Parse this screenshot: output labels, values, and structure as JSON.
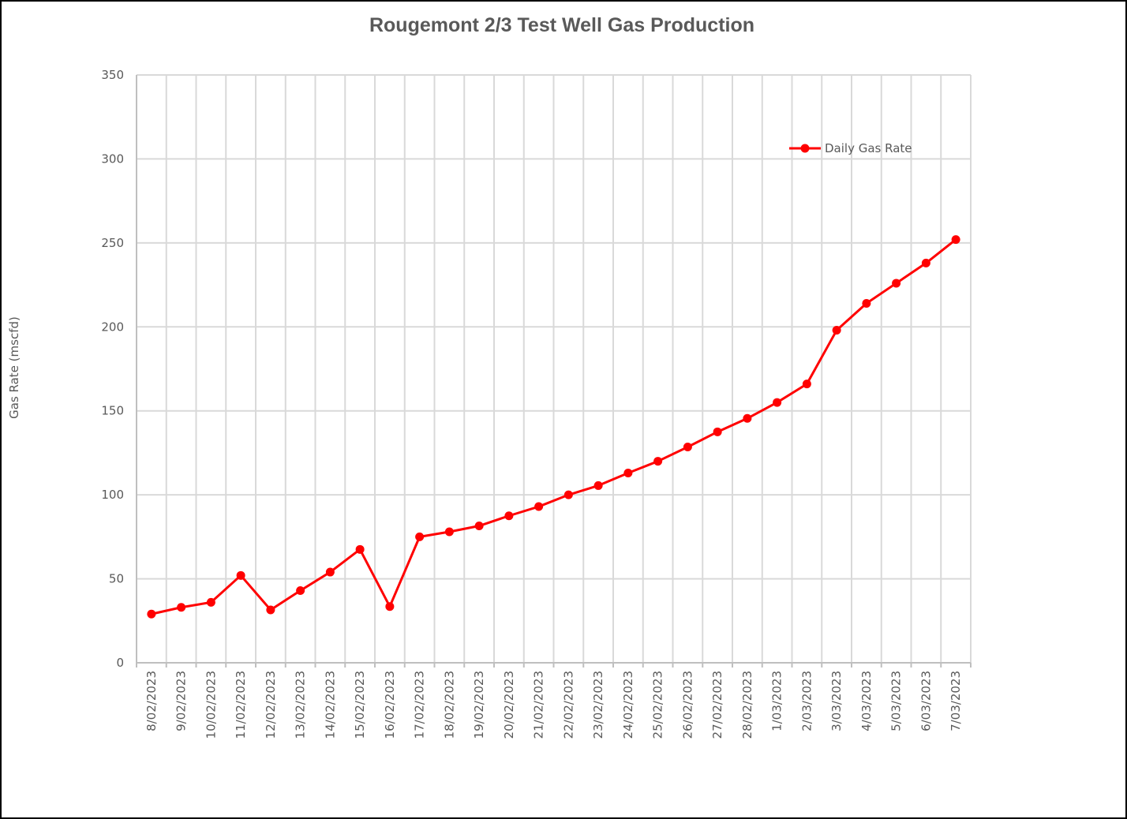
{
  "chart_data": {
    "type": "line",
    "title": "Rougemont 2/3 Test Well Gas Production",
    "xlabel": "",
    "ylabel": "Gas Rate (mscfd)",
    "ylim": [
      0,
      350
    ],
    "yticks": [
      0,
      50,
      100,
      150,
      200,
      250,
      300,
      350
    ],
    "grid": true,
    "legend": "top-right",
    "categories": [
      "8/02/2023",
      "9/02/2023",
      "10/02/2023",
      "11/02/2023",
      "12/02/2023",
      "13/02/2023",
      "14/02/2023",
      "15/02/2023",
      "16/02/2023",
      "17/02/2023",
      "18/02/2023",
      "19/02/2023",
      "20/02/2023",
      "21/02/2023",
      "22/02/2023",
      "23/02/2023",
      "24/02/2023",
      "25/02/2023",
      "26/02/2023",
      "27/02/2023",
      "28/02/2023",
      "1/03/2023",
      "2/03/2023",
      "3/03/2023",
      "4/03/2023",
      "5/03/2023",
      "6/03/2023",
      "7/03/2023"
    ],
    "series": [
      {
        "name": "Daily Gas Rate",
        "color": "#ff0000",
        "values": [
          29,
          33,
          36,
          52,
          31.5,
          43,
          54,
          67.5,
          33.5,
          75,
          78,
          81.5,
          87.5,
          93,
          100,
          105.5,
          113,
          120,
          128.5,
          137.5,
          145.5,
          155,
          166,
          198,
          214,
          226,
          238,
          252
        ]
      }
    ]
  }
}
